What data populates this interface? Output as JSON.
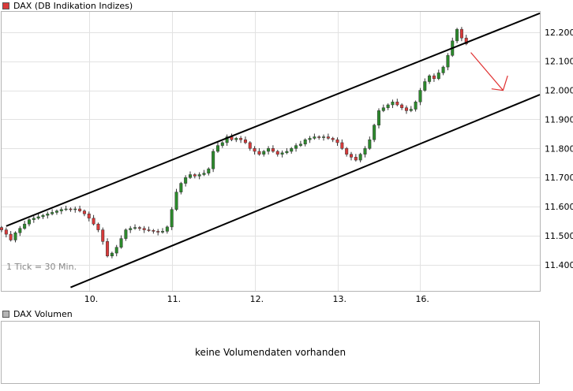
{
  "legend": {
    "price_label": "DAX (DB Indikation Indizes)",
    "price_color": "#d93a3a",
    "volume_label": "DAX Volumen",
    "volume_color": "#b4b4b4"
  },
  "tick_note": "1 Tick = 30 Min.",
  "volume_message": "keine Volumendaten vorhanden",
  "chart_data": {
    "type": "candlestick",
    "title": "DAX (DB Indikation Indizes)",
    "ylim": [
      11310,
      12270
    ],
    "yticks": [
      11400,
      11500,
      11600,
      11700,
      11800,
      11900,
      12000,
      12100,
      12200
    ],
    "ytick_labels": [
      "11.400",
      "11.500",
      "11.600",
      "11.700",
      "11.800",
      "11.900",
      "12.000",
      "12.100",
      "12.200"
    ],
    "xticks": [
      {
        "label": "10.",
        "index": 19
      },
      {
        "label": "11.",
        "index": 37
      },
      {
        "label": "12.",
        "index": 55
      },
      {
        "label": "13.",
        "index": 73
      },
      {
        "label": "16.",
        "index": 91
      }
    ],
    "up_color": "#2c8a2c",
    "down_color": "#d93a3a",
    "grid": true,
    "closes": [
      11520,
      11505,
      11485,
      11510,
      11525,
      11540,
      11555,
      11560,
      11565,
      11570,
      11575,
      11580,
      11585,
      11590,
      11592,
      11590,
      11592,
      11585,
      11575,
      11560,
      11540,
      11520,
      11480,
      11430,
      11440,
      11460,
      11490,
      11520,
      11525,
      11528,
      11525,
      11520,
      11518,
      11515,
      11512,
      11515,
      11530,
      11590,
      11650,
      11680,
      11700,
      11710,
      11705,
      11710,
      11715,
      11730,
      11790,
      11810,
      11820,
      11840,
      11830,
      11835,
      11830,
      11820,
      11800,
      11790,
      11780,
      11790,
      11800,
      11790,
      11780,
      11785,
      11790,
      11800,
      11810,
      11815,
      11830,
      11835,
      11840,
      11838,
      11840,
      11835,
      11830,
      11820,
      11800,
      11780,
      11770,
      11760,
      11780,
      11800,
      11830,
      11880,
      11930,
      11940,
      11950,
      11960,
      11950,
      11940,
      11930,
      11935,
      11960,
      12000,
      12030,
      12050,
      12040,
      12060,
      12080,
      12120,
      12170,
      12210,
      12180,
      12160
    ],
    "channel": {
      "upper": [
        {
          "index": 1,
          "value": 11533
        },
        {
          "index": 117,
          "value": 12265
        }
      ],
      "lower": [
        {
          "index": 15,
          "value": 11322
        },
        {
          "index": 117,
          "value": 11985
        }
      ]
    },
    "annotation": {
      "color": "#e03030",
      "points": [
        {
          "index": 102,
          "value": 12130
        },
        {
          "index": 109,
          "value": 12000
        }
      ],
      "arrowhead": [
        {
          "index": 106.5,
          "value": 12005
        },
        {
          "index": 109,
          "value": 12000
        },
        {
          "index": 110,
          "value": 12050
        }
      ]
    }
  }
}
